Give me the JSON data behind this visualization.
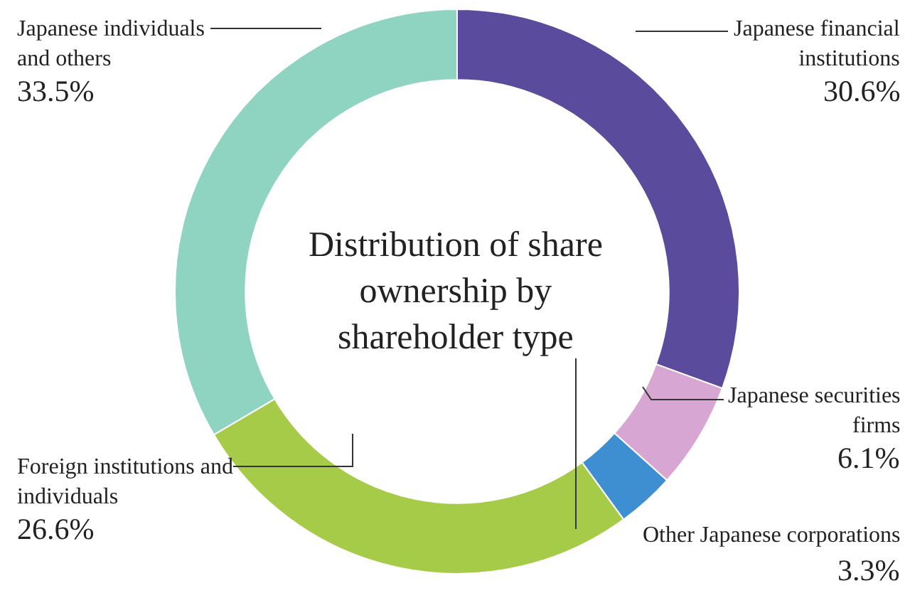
{
  "chart_data": {
    "type": "donut",
    "title": "Distribution of share ownership by shareholder type",
    "categories": [
      "Japanese financial institutions",
      "Japanese securities firms",
      "Other Japanese corporations",
      "Foreign institutions and individuals",
      "Japanese individuals and others"
    ],
    "values": [
      30.6,
      6.1,
      3.3,
      26.6,
      33.5
    ],
    "value_labels": [
      "30.6%",
      "6.1%",
      "3.3%",
      "26.6%",
      "33.5%"
    ],
    "colors": [
      "#5a4b9c",
      "#d7a6d3",
      "#3d8fd1",
      "#a5cb48",
      "#8fd3c1"
    ],
    "legend": false
  }
}
